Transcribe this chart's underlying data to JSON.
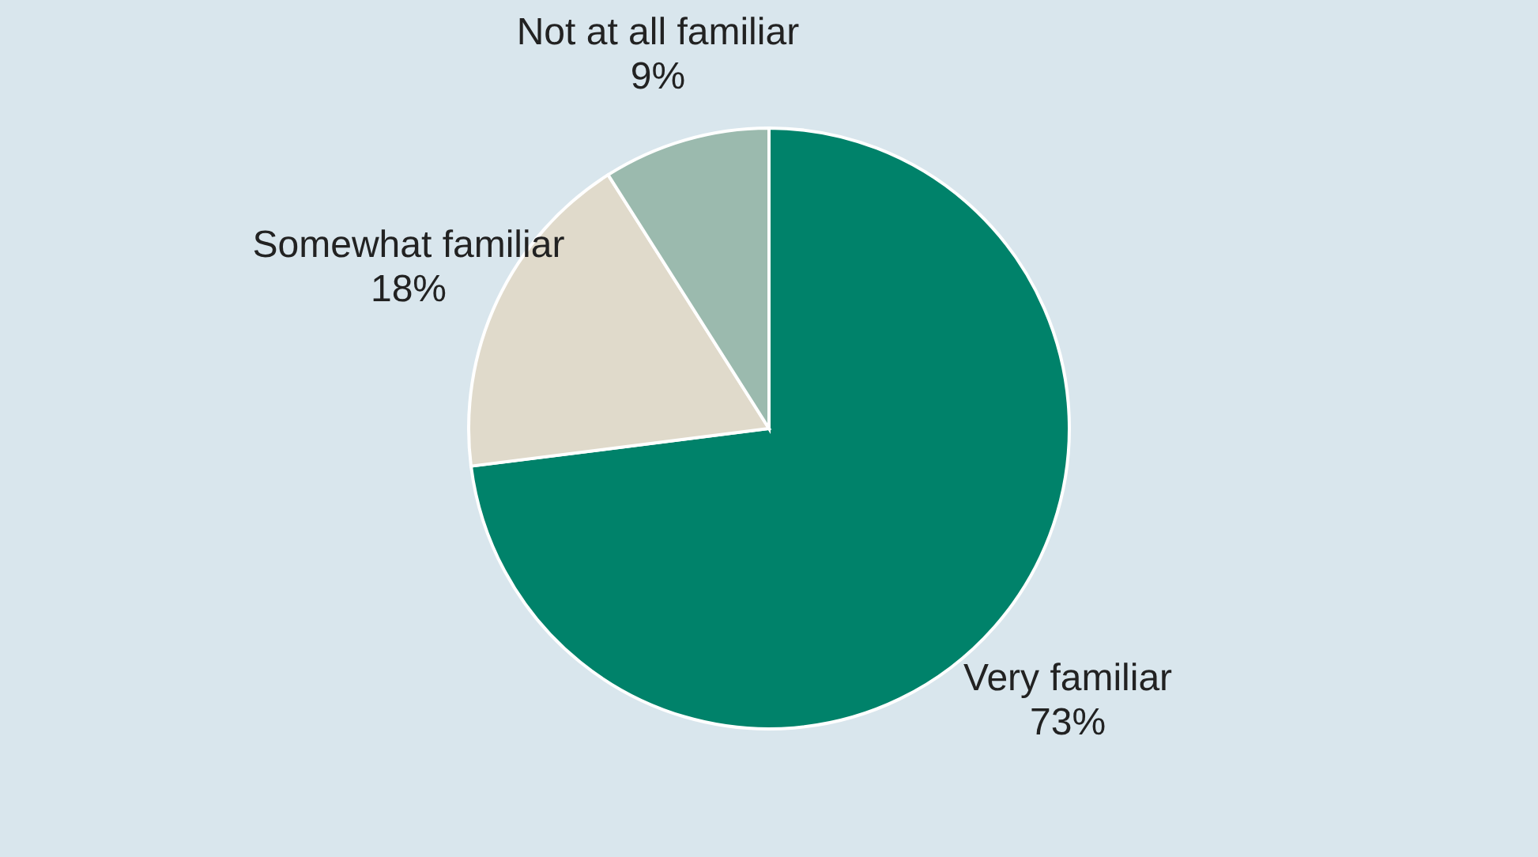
{
  "chart_data": {
    "type": "pie",
    "categories": [
      "Very familiar",
      "Somewhat familiar",
      "Not at all familiar"
    ],
    "values": [
      73,
      18,
      9
    ],
    "colors": [
      "#00826a",
      "#e0dacb",
      "#9bbaae"
    ],
    "value_labels": [
      "73%",
      "18%",
      "9%"
    ],
    "legend": false
  }
}
